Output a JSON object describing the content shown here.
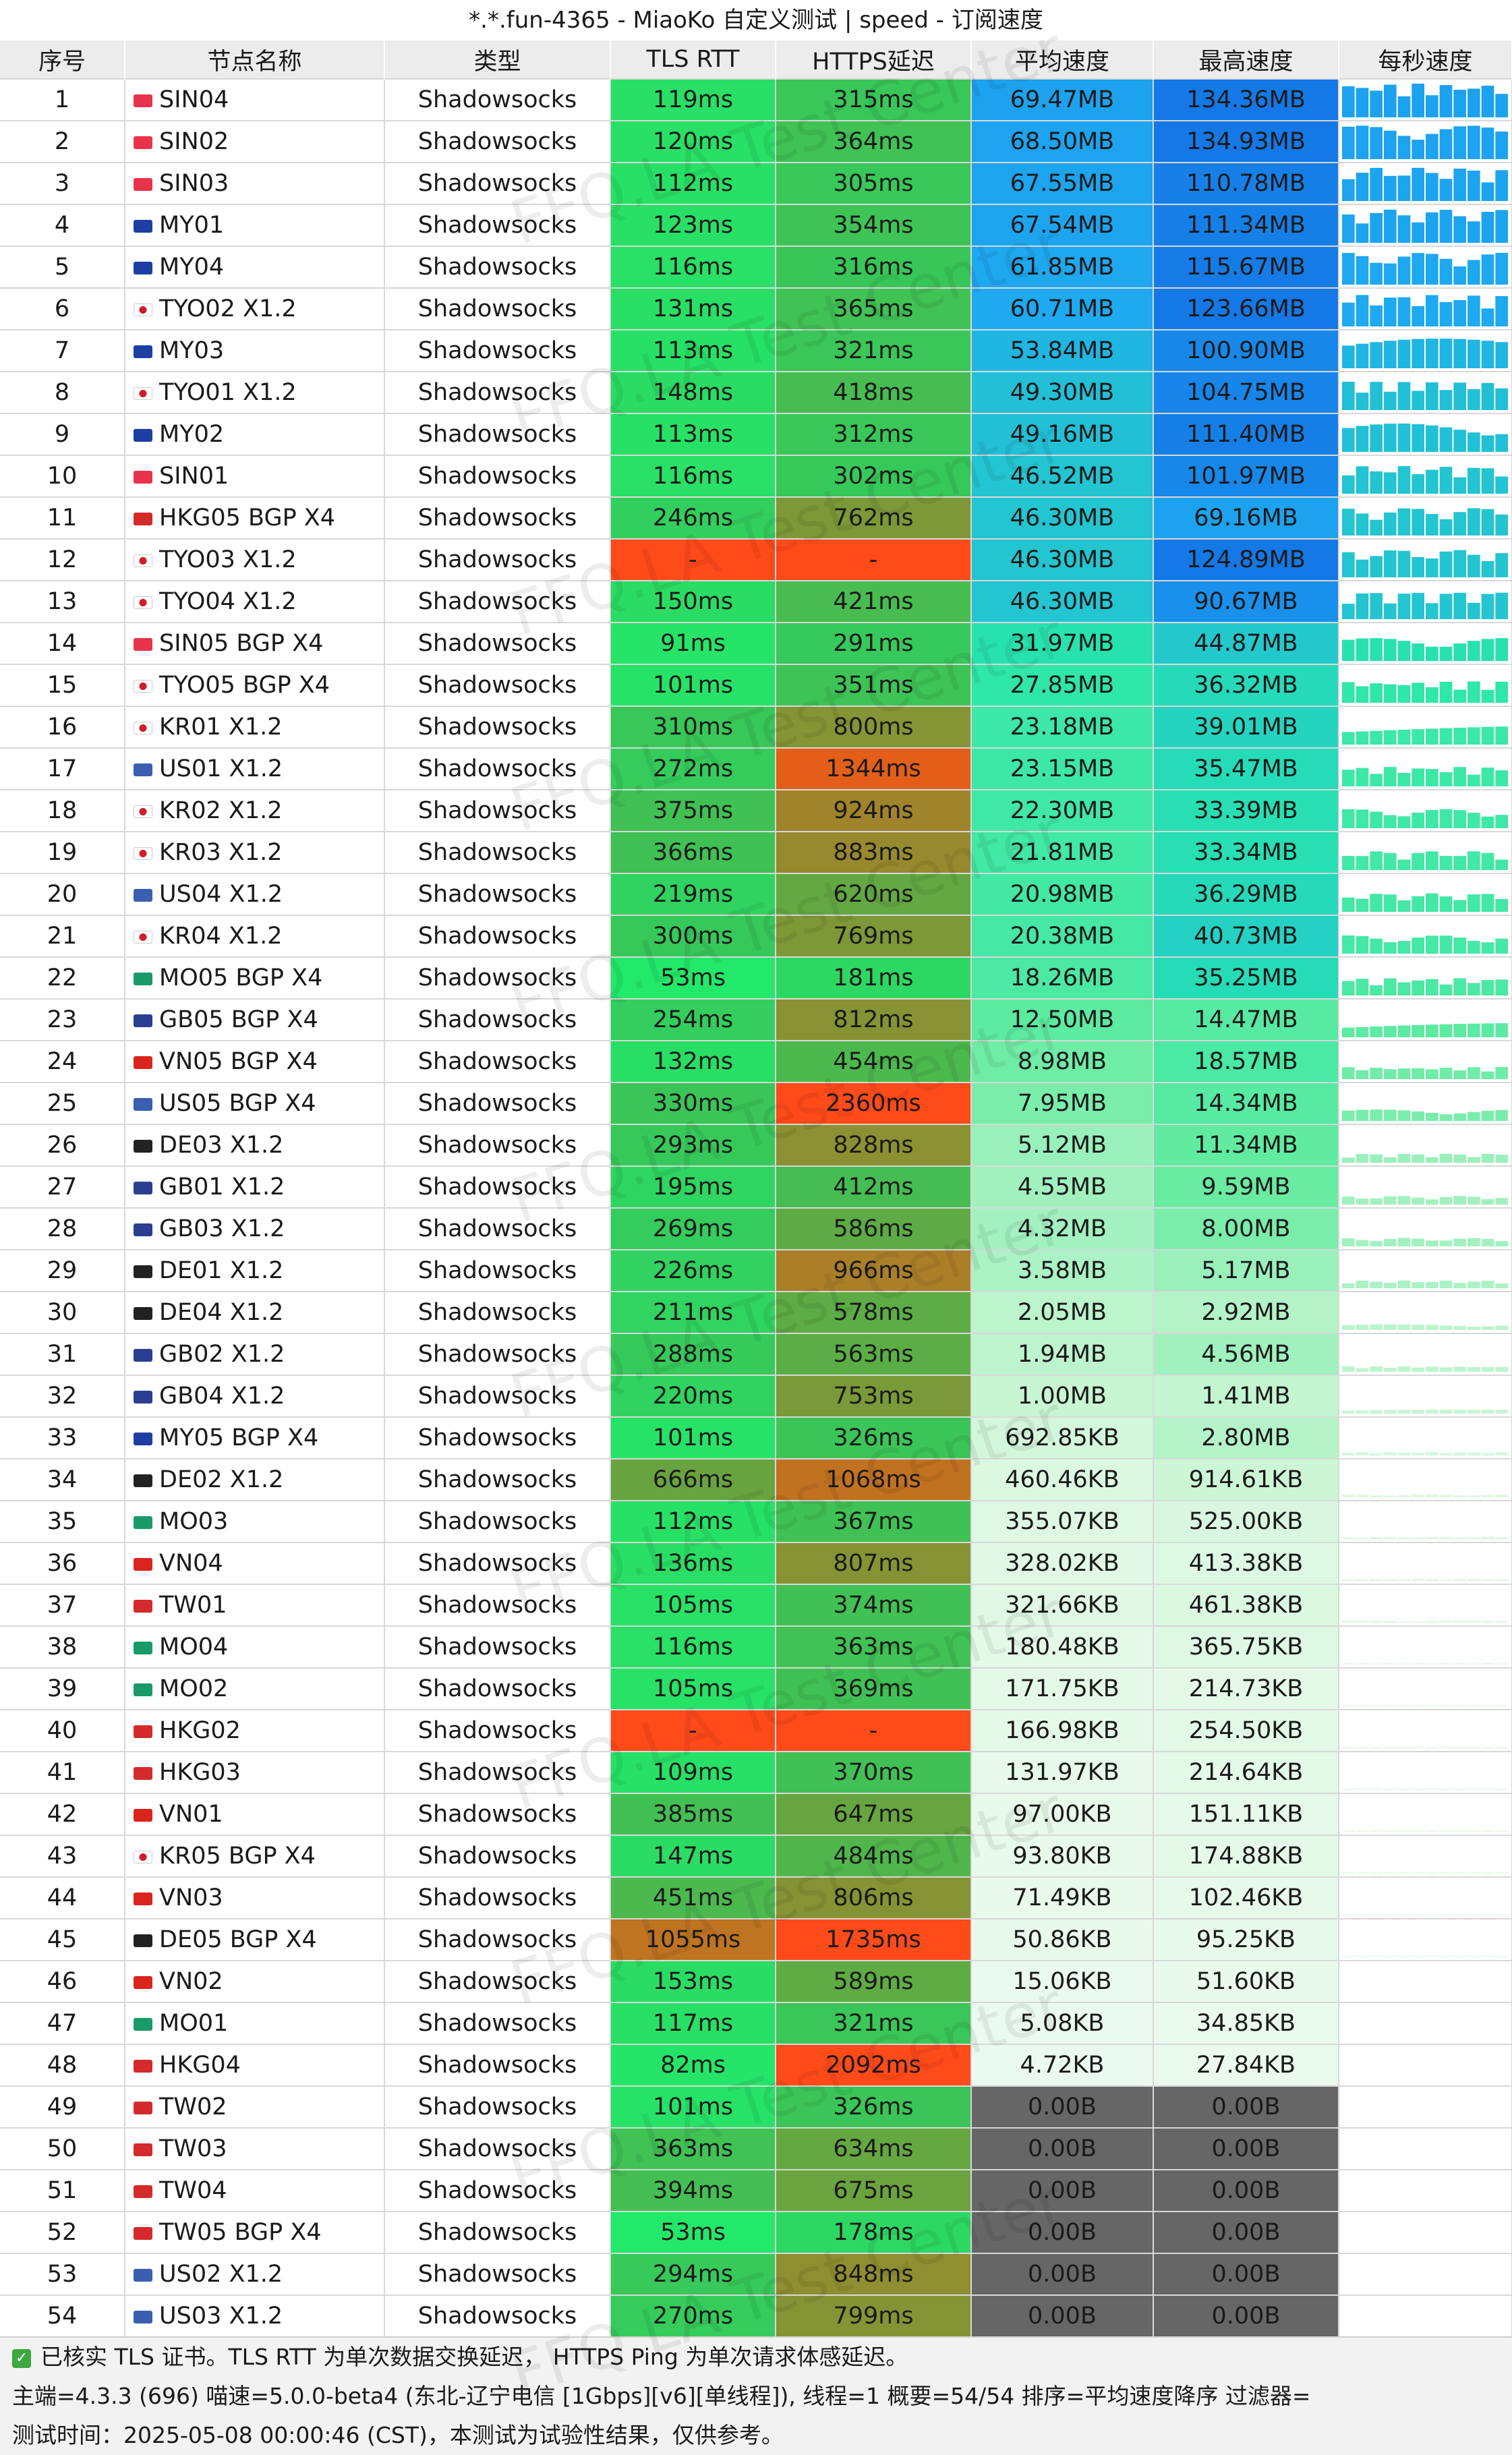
{
  "window": {
    "title": "*.*.fun-4365 - MiaoKo 自定义测试 | speed - 订阅速度"
  },
  "watermark": "FFQ.LA Test Center",
  "columns": [
    "序号",
    "节点名称",
    "类型",
    "TLS RTT",
    "HTTPS延迟",
    "平均速度",
    "最高速度",
    "每秒速度"
  ],
  "colors": {
    "fail": "#ff4a1a",
    "zero_speed": "#666666",
    "flags": {
      "sg": "#e8334a",
      "my": "#1d3fa3",
      "jp": "#ffffff",
      "hk": "#d42a2a",
      "kr": "#ffffff",
      "us": "#3b5fb0",
      "mo": "#1a9a6a",
      "gb": "#2a3f8f",
      "vn": "#da251d",
      "de": "#222222",
      "tw": "#d42a2a"
    }
  },
  "rows": [
    {
      "id": "1",
      "flag": "sg",
      "name": "SIN04",
      "type": "Shadowsocks",
      "tls": "119ms",
      "https": "315ms",
      "avg": "69.47MB",
      "max": "134.36MB"
    },
    {
      "id": "2",
      "flag": "sg",
      "name": "SIN02",
      "type": "Shadowsocks",
      "tls": "120ms",
      "https": "364ms",
      "avg": "68.50MB",
      "max": "134.93MB"
    },
    {
      "id": "3",
      "flag": "sg",
      "name": "SIN03",
      "type": "Shadowsocks",
      "tls": "112ms",
      "https": "305ms",
      "avg": "67.55MB",
      "max": "110.78MB"
    },
    {
      "id": "4",
      "flag": "my",
      "name": "MY01",
      "type": "Shadowsocks",
      "tls": "123ms",
      "https": "354ms",
      "avg": "67.54MB",
      "max": "111.34MB"
    },
    {
      "id": "5",
      "flag": "my",
      "name": "MY04",
      "type": "Shadowsocks",
      "tls": "116ms",
      "https": "316ms",
      "avg": "61.85MB",
      "max": "115.67MB"
    },
    {
      "id": "6",
      "flag": "jp",
      "name": "TYO02 X1.2",
      "type": "Shadowsocks",
      "tls": "131ms",
      "https": "365ms",
      "avg": "60.71MB",
      "max": "123.66MB"
    },
    {
      "id": "7",
      "flag": "my",
      "name": "MY03",
      "type": "Shadowsocks",
      "tls": "113ms",
      "https": "321ms",
      "avg": "53.84MB",
      "max": "100.90MB"
    },
    {
      "id": "8",
      "flag": "jp",
      "name": "TYO01 X1.2",
      "type": "Shadowsocks",
      "tls": "148ms",
      "https": "418ms",
      "avg": "49.30MB",
      "max": "104.75MB"
    },
    {
      "id": "9",
      "flag": "my",
      "name": "MY02",
      "type": "Shadowsocks",
      "tls": "113ms",
      "https": "312ms",
      "avg": "49.16MB",
      "max": "111.40MB"
    },
    {
      "id": "10",
      "flag": "sg",
      "name": "SIN01",
      "type": "Shadowsocks",
      "tls": "116ms",
      "https": "302ms",
      "avg": "46.52MB",
      "max": "101.97MB"
    },
    {
      "id": "11",
      "flag": "hk",
      "name": "HKG05 BGP X4",
      "type": "Shadowsocks",
      "tls": "246ms",
      "https": "762ms",
      "avg": "46.30MB",
      "max": "69.16MB"
    },
    {
      "id": "12",
      "flag": "jp",
      "name": "TYO03 X1.2",
      "type": "Shadowsocks",
      "tls": "-",
      "https": "-",
      "avg": "46.30MB",
      "max": "124.89MB"
    },
    {
      "id": "13",
      "flag": "jp",
      "name": "TYO04 X1.2",
      "type": "Shadowsocks",
      "tls": "150ms",
      "https": "421ms",
      "avg": "46.30MB",
      "max": "90.67MB"
    },
    {
      "id": "14",
      "flag": "sg",
      "name": "SIN05 BGP X4",
      "type": "Shadowsocks",
      "tls": "91ms",
      "https": "291ms",
      "avg": "31.97MB",
      "max": "44.87MB"
    },
    {
      "id": "15",
      "flag": "jp",
      "name": "TYO05 BGP X4",
      "type": "Shadowsocks",
      "tls": "101ms",
      "https": "351ms",
      "avg": "27.85MB",
      "max": "36.32MB"
    },
    {
      "id": "16",
      "flag": "kr",
      "name": "KR01 X1.2",
      "type": "Shadowsocks",
      "tls": "310ms",
      "https": "800ms",
      "avg": "23.18MB",
      "max": "39.01MB"
    },
    {
      "id": "17",
      "flag": "us",
      "name": "US01 X1.2",
      "type": "Shadowsocks",
      "tls": "272ms",
      "https": "1344ms",
      "avg": "23.15MB",
      "max": "35.47MB"
    },
    {
      "id": "18",
      "flag": "kr",
      "name": "KR02 X1.2",
      "type": "Shadowsocks",
      "tls": "375ms",
      "https": "924ms",
      "avg": "22.30MB",
      "max": "33.39MB"
    },
    {
      "id": "19",
      "flag": "kr",
      "name": "KR03 X1.2",
      "type": "Shadowsocks",
      "tls": "366ms",
      "https": "883ms",
      "avg": "21.81MB",
      "max": "33.34MB"
    },
    {
      "id": "20",
      "flag": "us",
      "name": "US04 X1.2",
      "type": "Shadowsocks",
      "tls": "219ms",
      "https": "620ms",
      "avg": "20.98MB",
      "max": "36.29MB"
    },
    {
      "id": "21",
      "flag": "kr",
      "name": "KR04 X1.2",
      "type": "Shadowsocks",
      "tls": "300ms",
      "https": "769ms",
      "avg": "20.38MB",
      "max": "40.73MB"
    },
    {
      "id": "22",
      "flag": "mo",
      "name": "MO05 BGP X4",
      "type": "Shadowsocks",
      "tls": "53ms",
      "https": "181ms",
      "avg": "18.26MB",
      "max": "35.25MB"
    },
    {
      "id": "23",
      "flag": "gb",
      "name": "GB05 BGP X4",
      "type": "Shadowsocks",
      "tls": "254ms",
      "https": "812ms",
      "avg": "12.50MB",
      "max": "14.47MB"
    },
    {
      "id": "24",
      "flag": "vn",
      "name": "VN05 BGP X4",
      "type": "Shadowsocks",
      "tls": "132ms",
      "https": "454ms",
      "avg": "8.98MB",
      "max": "18.57MB"
    },
    {
      "id": "25",
      "flag": "us",
      "name": "US05 BGP X4",
      "type": "Shadowsocks",
      "tls": "330ms",
      "https": "2360ms",
      "avg": "7.95MB",
      "max": "14.34MB"
    },
    {
      "id": "26",
      "flag": "de",
      "name": "DE03 X1.2",
      "type": "Shadowsocks",
      "tls": "293ms",
      "https": "828ms",
      "avg": "5.12MB",
      "max": "11.34MB"
    },
    {
      "id": "27",
      "flag": "gb",
      "name": "GB01 X1.2",
      "type": "Shadowsocks",
      "tls": "195ms",
      "https": "412ms",
      "avg": "4.55MB",
      "max": "9.59MB"
    },
    {
      "id": "28",
      "flag": "gb",
      "name": "GB03 X1.2",
      "type": "Shadowsocks",
      "tls": "269ms",
      "https": "586ms",
      "avg": "4.32MB",
      "max": "8.00MB"
    },
    {
      "id": "29",
      "flag": "de",
      "name": "DE01 X1.2",
      "type": "Shadowsocks",
      "tls": "226ms",
      "https": "966ms",
      "avg": "3.58MB",
      "max": "5.17MB"
    },
    {
      "id": "30",
      "flag": "de",
      "name": "DE04 X1.2",
      "type": "Shadowsocks",
      "tls": "211ms",
      "https": "578ms",
      "avg": "2.05MB",
      "max": "2.92MB"
    },
    {
      "id": "31",
      "flag": "gb",
      "name": "GB02 X1.2",
      "type": "Shadowsocks",
      "tls": "288ms",
      "https": "563ms",
      "avg": "1.94MB",
      "max": "4.56MB"
    },
    {
      "id": "32",
      "flag": "gb",
      "name": "GB04 X1.2",
      "type": "Shadowsocks",
      "tls": "220ms",
      "https": "753ms",
      "avg": "1.00MB",
      "max": "1.41MB"
    },
    {
      "id": "33",
      "flag": "my",
      "name": "MY05 BGP X4",
      "type": "Shadowsocks",
      "tls": "101ms",
      "https": "326ms",
      "avg": "692.85KB",
      "max": "2.80MB"
    },
    {
      "id": "34",
      "flag": "de",
      "name": "DE02 X1.2",
      "type": "Shadowsocks",
      "tls": "666ms",
      "https": "1068ms",
      "avg": "460.46KB",
      "max": "914.61KB"
    },
    {
      "id": "35",
      "flag": "mo",
      "name": "MO03",
      "type": "Shadowsocks",
      "tls": "112ms",
      "https": "367ms",
      "avg": "355.07KB",
      "max": "525.00KB"
    },
    {
      "id": "36",
      "flag": "vn",
      "name": "VN04",
      "type": "Shadowsocks",
      "tls": "136ms",
      "https": "807ms",
      "avg": "328.02KB",
      "max": "413.38KB"
    },
    {
      "id": "37",
      "flag": "tw",
      "name": "TW01",
      "type": "Shadowsocks",
      "tls": "105ms",
      "https": "374ms",
      "avg": "321.66KB",
      "max": "461.38KB"
    },
    {
      "id": "38",
      "flag": "mo",
      "name": "MO04",
      "type": "Shadowsocks",
      "tls": "116ms",
      "https": "363ms",
      "avg": "180.48KB",
      "max": "365.75KB"
    },
    {
      "id": "39",
      "flag": "mo",
      "name": "MO02",
      "type": "Shadowsocks",
      "tls": "105ms",
      "https": "369ms",
      "avg": "171.75KB",
      "max": "214.73KB"
    },
    {
      "id": "40",
      "flag": "hk",
      "name": "HKG02",
      "type": "Shadowsocks",
      "tls": "-",
      "https": "-",
      "avg": "166.98KB",
      "max": "254.50KB"
    },
    {
      "id": "41",
      "flag": "hk",
      "name": "HKG03",
      "type": "Shadowsocks",
      "tls": "109ms",
      "https": "370ms",
      "avg": "131.97KB",
      "max": "214.64KB"
    },
    {
      "id": "42",
      "flag": "vn",
      "name": "VN01",
      "type": "Shadowsocks",
      "tls": "385ms",
      "https": "647ms",
      "avg": "97.00KB",
      "max": "151.11KB"
    },
    {
      "id": "43",
      "flag": "kr",
      "name": "KR05 BGP X4",
      "type": "Shadowsocks",
      "tls": "147ms",
      "https": "484ms",
      "avg": "93.80KB",
      "max": "174.88KB"
    },
    {
      "id": "44",
      "flag": "vn",
      "name": "VN03",
      "type": "Shadowsocks",
      "tls": "451ms",
      "https": "806ms",
      "avg": "71.49KB",
      "max": "102.46KB"
    },
    {
      "id": "45",
      "flag": "de",
      "name": "DE05 BGP X4",
      "type": "Shadowsocks",
      "tls": "1055ms",
      "https": "1735ms",
      "avg": "50.86KB",
      "max": "95.25KB"
    },
    {
      "id": "46",
      "flag": "vn",
      "name": "VN02",
      "type": "Shadowsocks",
      "tls": "153ms",
      "https": "589ms",
      "avg": "15.06KB",
      "max": "51.60KB"
    },
    {
      "id": "47",
      "flag": "mo",
      "name": "MO01",
      "type": "Shadowsocks",
      "tls": "117ms",
      "https": "321ms",
      "avg": "5.08KB",
      "max": "34.85KB"
    },
    {
      "id": "48",
      "flag": "hk",
      "name": "HKG04",
      "type": "Shadowsocks",
      "tls": "82ms",
      "https": "2092ms",
      "avg": "4.72KB",
      "max": "27.84KB"
    },
    {
      "id": "49",
      "flag": "tw",
      "name": "TW02",
      "type": "Shadowsocks",
      "tls": "101ms",
      "https": "326ms",
      "avg": "0.00B",
      "max": "0.00B"
    },
    {
      "id": "50",
      "flag": "tw",
      "name": "TW03",
      "type": "Shadowsocks",
      "tls": "363ms",
      "https": "634ms",
      "avg": "0.00B",
      "max": "0.00B"
    },
    {
      "id": "51",
      "flag": "tw",
      "name": "TW04",
      "type": "Shadowsocks",
      "tls": "394ms",
      "https": "675ms",
      "avg": "0.00B",
      "max": "0.00B"
    },
    {
      "id": "52",
      "flag": "tw",
      "name": "TW05 BGP X4",
      "type": "Shadowsocks",
      "tls": "53ms",
      "https": "178ms",
      "avg": "0.00B",
      "max": "0.00B"
    },
    {
      "id": "53",
      "flag": "us",
      "name": "US02 X1.2",
      "type": "Shadowsocks",
      "tls": "294ms",
      "https": "848ms",
      "avg": "0.00B",
      "max": "0.00B"
    },
    {
      "id": "54",
      "flag": "us",
      "name": "US03 X1.2",
      "type": "Shadowsocks",
      "tls": "270ms",
      "https": "799ms",
      "avg": "0.00B",
      "max": "0.00B"
    }
  ],
  "footer": {
    "line1": "已核实 TLS 证书。TLS RTT 为单次数据交换延迟， HTTPS Ping 为单次请求体感延迟。",
    "line2": "主端=4.3.3 (696) 喵速=5.0.0-beta4 (东北-辽宁电信 [1Gbps][v6][单线程]), 线程=1 概要=54/54 排序=平均速度降序 过滤器=",
    "line3": "测试时间：2025-05-08 00:00:46 (CST)，本测试为试验性结果，仅供参考。"
  }
}
